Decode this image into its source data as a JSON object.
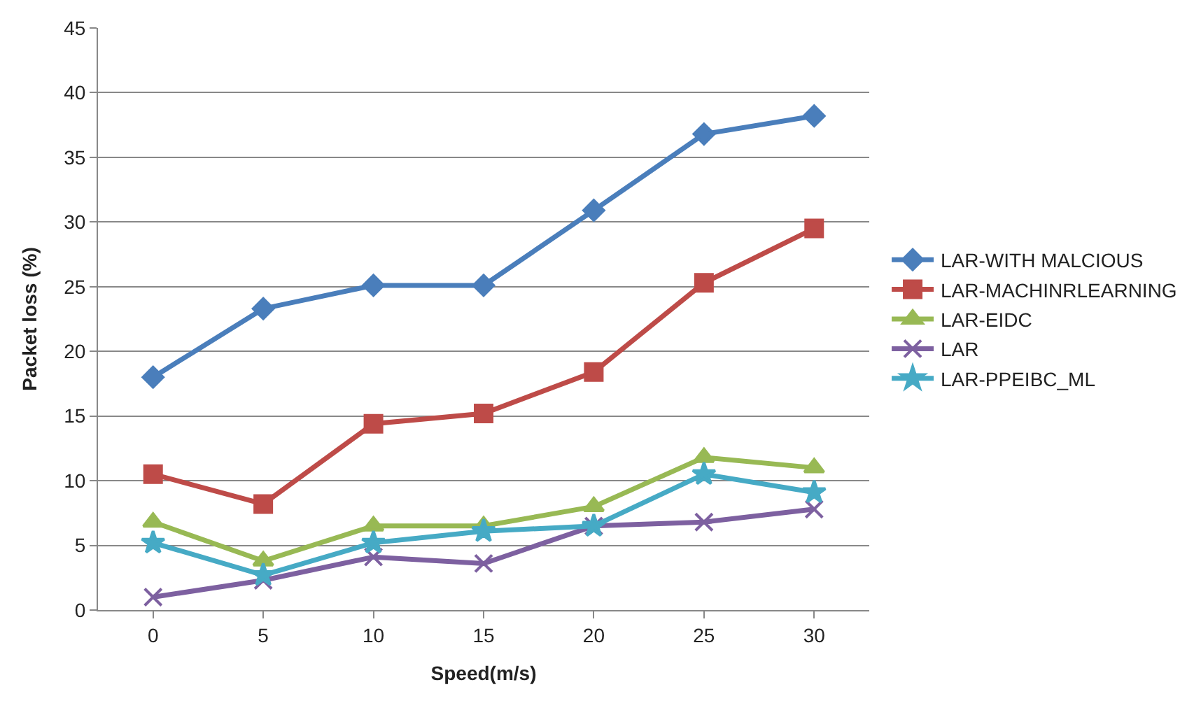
{
  "chart_data": {
    "type": "line",
    "xlabel": "Speed(m/s)",
    "ylabel": "Packet loss (%)",
    "categories": [
      "0",
      "5",
      "10",
      "15",
      "20",
      "25",
      "30"
    ],
    "ylim": [
      0,
      45
    ],
    "yticks": [
      0,
      5,
      10,
      15,
      20,
      25,
      30,
      35,
      40,
      45
    ],
    "grid": "y",
    "legend": "right",
    "series": [
      {
        "name": "LAR-WITH MALCIOUS",
        "color": "#4a7ebb",
        "marker": "diamond",
        "values": [
          18,
          23.3,
          25.1,
          25.1,
          30.9,
          36.8,
          38.2
        ]
      },
      {
        "name": "LAR-MACHINRLEARNING",
        "color": "#be4b48",
        "marker": "square",
        "values": [
          10.5,
          8.2,
          14.4,
          15.2,
          18.4,
          25.3,
          29.5
        ]
      },
      {
        "name": "LAR-EIDC",
        "color": "#98b954",
        "marker": "triangle",
        "values": [
          6.8,
          3.8,
          6.5,
          6.5,
          8,
          11.8,
          11
        ]
      },
      {
        "name": "LAR",
        "color": "#7d60a0",
        "marker": "cross",
        "values": [
          1,
          2.3,
          4.1,
          3.6,
          6.5,
          6.8,
          7.8
        ]
      },
      {
        "name": "LAR-PPEIBC_ML",
        "color": "#46aac5",
        "marker": "star",
        "values": [
          5.2,
          2.7,
          5.2,
          6.1,
          6.5,
          10.5,
          9.1
        ]
      }
    ]
  }
}
